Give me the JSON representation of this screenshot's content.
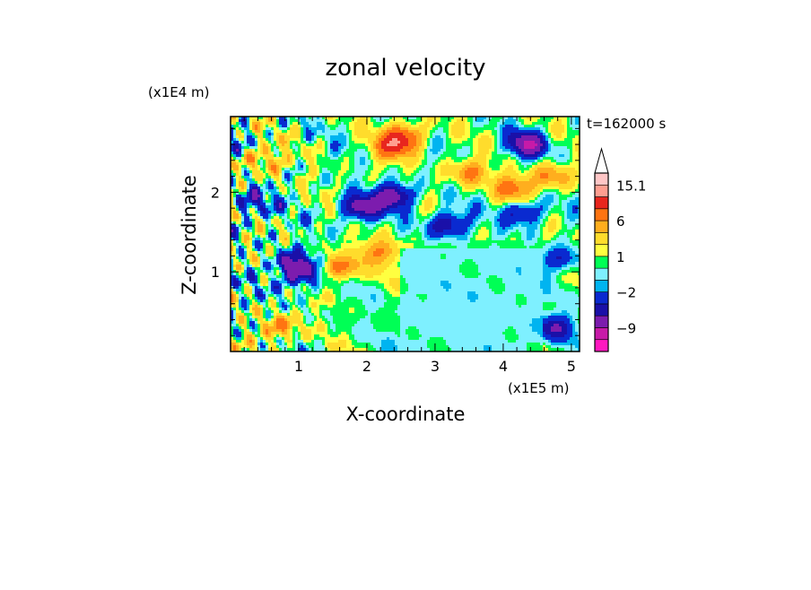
{
  "chart_data": {
    "type": "heatmap",
    "title": "zonal velocity",
    "xlabel": "X-coordinate",
    "ylabel": "Z-coordinate",
    "x_unit": "(x1E5 m)",
    "y_unit": "(x1E4 m)",
    "time_label": "t=162000 s",
    "xlim": [
      0,
      5.12
    ],
    "ylim": [
      0,
      2.95
    ],
    "x_ticks": [
      1,
      2,
      3,
      4,
      5
    ],
    "x_tick_labels": [
      "1",
      "2",
      "3",
      "4",
      "5"
    ],
    "y_ticks": [
      1,
      2
    ],
    "y_tick_labels": [
      "1",
      "2"
    ],
    "colorbar": {
      "levels": [
        -15.1,
        -12,
        -9,
        -6,
        -4,
        -2,
        -1,
        0,
        1,
        2,
        4,
        6,
        9,
        12,
        15.1
      ],
      "colors": [
        "#ff18c0",
        "#c71aa8",
        "#7c1cae",
        "#1a10a8",
        "#0a2ad0",
        "#00b4f0",
        "#7ef0ff",
        "#00ff55",
        "#ffff40",
        "#ffdc2c",
        "#ffae1e",
        "#ff7412",
        "#e8261e",
        "#ff9e90",
        "#ffc6c6"
      ],
      "extend_top_color": "#ffffff",
      "tick_values": [
        15.1,
        6,
        1,
        -2,
        -9
      ],
      "tick_labels": [
        "15.1",
        "6",
        "1",
        "−2",
        "−9"
      ]
    },
    "field_features": [
      {
        "x": 0.5,
        "z": 2.4,
        "u": 5
      },
      {
        "x": 0.35,
        "z": 1.85,
        "u": -5
      },
      {
        "x": 0.9,
        "z": 1.1,
        "u": -7
      },
      {
        "x": 1.05,
        "z": 0.95,
        "u": -6
      },
      {
        "x": 1.6,
        "z": 1.05,
        "u": 7
      },
      {
        "x": 2.2,
        "z": 1.25,
        "u": 6
      },
      {
        "x": 2.35,
        "z": 2.55,
        "u": 7
      },
      {
        "x": 2.55,
        "z": 2.7,
        "u": 9
      },
      {
        "x": 1.9,
        "z": 1.8,
        "u": -8
      },
      {
        "x": 2.4,
        "z": 1.95,
        "u": -9
      },
      {
        "x": 3.2,
        "z": 1.6,
        "u": -7
      },
      {
        "x": 3.5,
        "z": 2.25,
        "u": 6
      },
      {
        "x": 4.15,
        "z": 2.05,
        "u": 7
      },
      {
        "x": 4.3,
        "z": 1.75,
        "u": -6
      },
      {
        "x": 4.35,
        "z": 2.6,
        "u": -9
      },
      {
        "x": 4.8,
        "z": 1.15,
        "u": -5
      },
      {
        "x": 4.7,
        "z": 2.2,
        "u": 6
      },
      {
        "x": 3.6,
        "z": 0.75,
        "u": -1
      },
      {
        "x": 2.9,
        "z": 0.55,
        "u": -0.5
      },
      {
        "x": 4.75,
        "z": 0.3,
        "u": -6
      },
      {
        "x": 0.7,
        "z": 0.3,
        "u": 6
      }
    ]
  }
}
